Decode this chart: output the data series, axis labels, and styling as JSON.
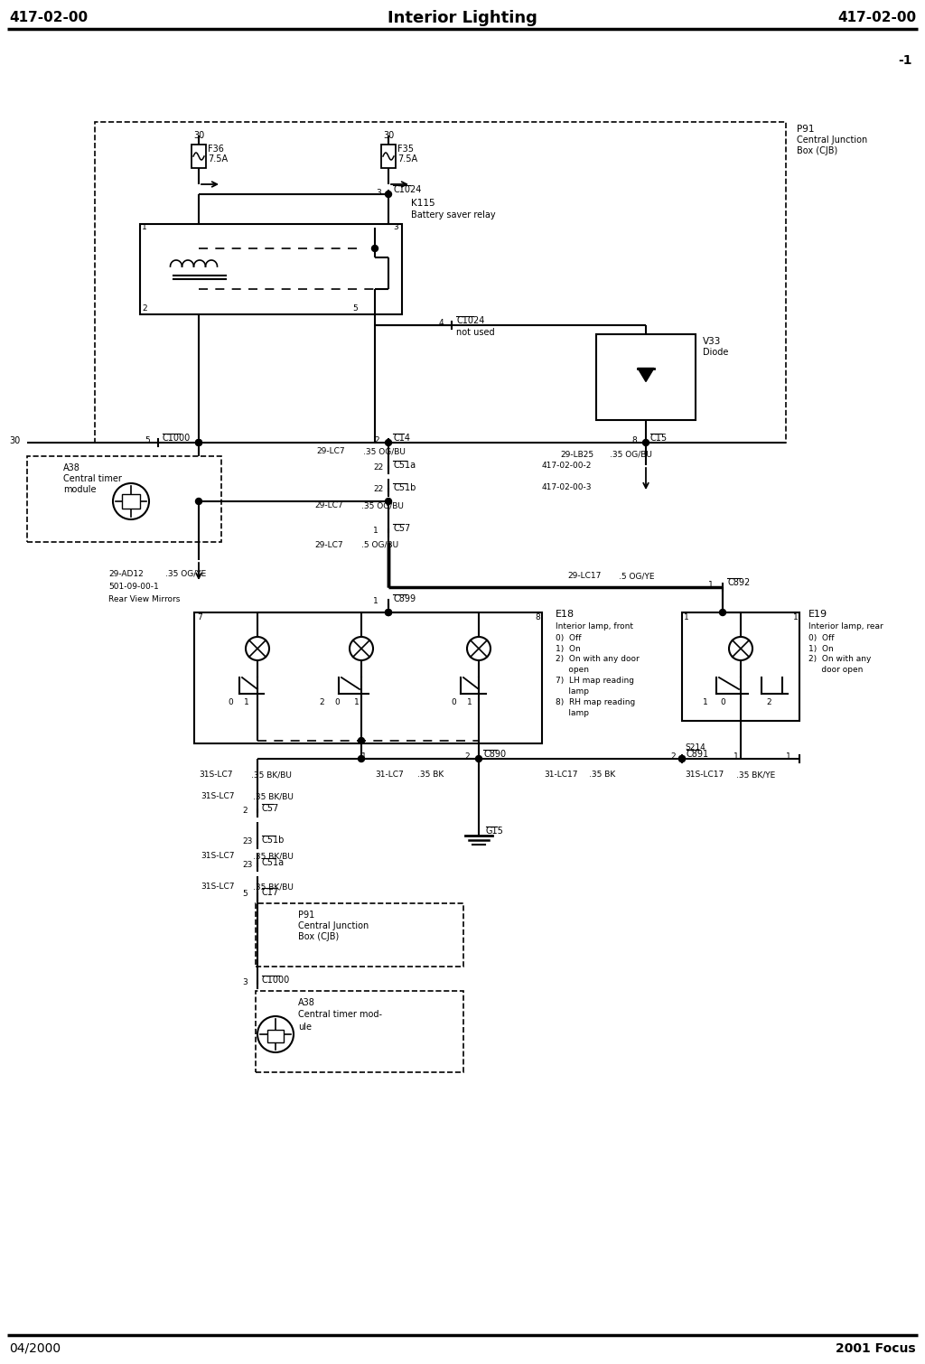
{
  "title_left": "417-02-00",
  "title_center": "Interior Lighting",
  "title_right": "417-02-00",
  "footer_left": "04/2000",
  "footer_right": "2001 Focus",
  "page_number": "-1",
  "bg_color": "#ffffff"
}
